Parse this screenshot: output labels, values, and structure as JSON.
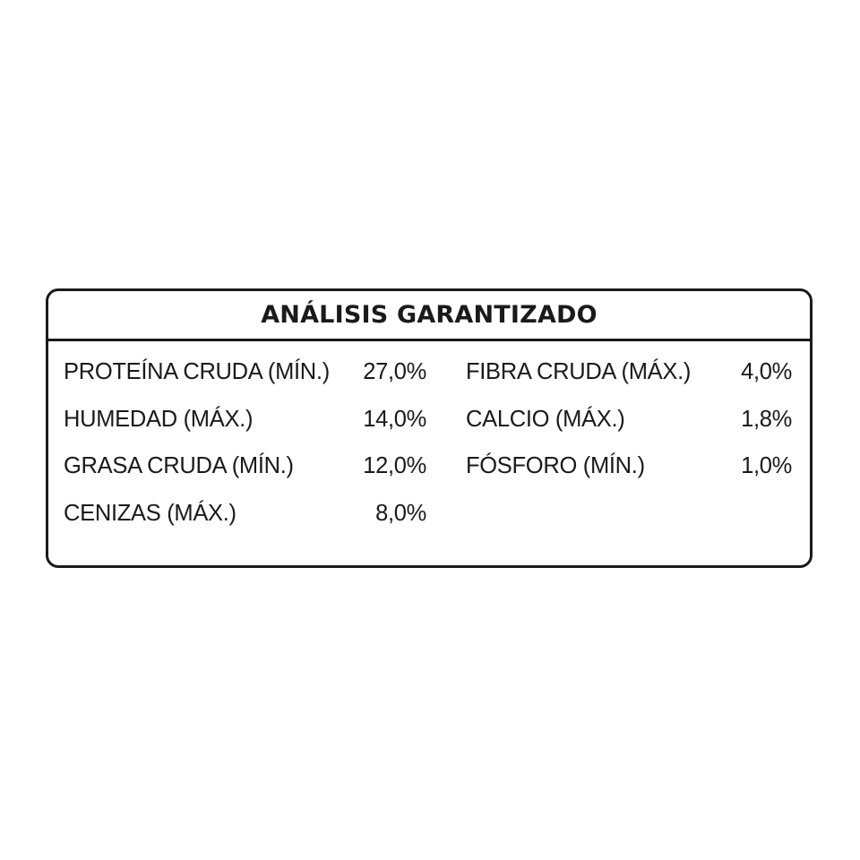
{
  "title": "ANÁLISIS GARANTIZADO",
  "left_column": [
    {
      "label": "PROTEÍNA CRUDA (MÍN.)",
      "value": "27,0%"
    },
    {
      "label": "HUMEDAD (MÁX.)",
      "value": "14,0%"
    },
    {
      "label": "GRASA CRUDA (MÍN.)",
      "value": "12,0%"
    },
    {
      "label": "CENIZAS (MÁX.)",
      "value": "8,0%"
    }
  ],
  "right_column": [
    {
      "label": "FIBRA CRUDA (MÁX.)",
      "value": "4,0%"
    },
    {
      "label": "CALCIO (MÁX.)",
      "value": "1,8%"
    },
    {
      "label": "FÓSFORO (MÍN.)",
      "value": "1,0%"
    }
  ]
}
